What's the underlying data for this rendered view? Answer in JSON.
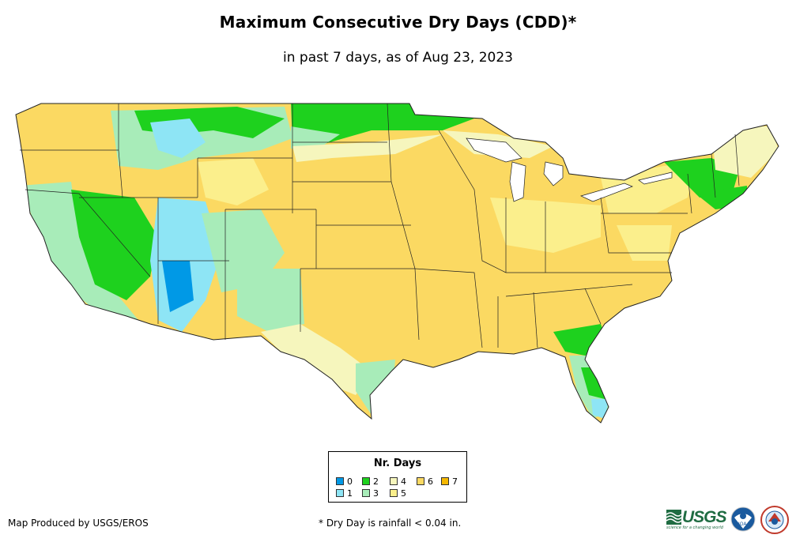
{
  "title": "Maximum Consecutive Dry Days (CDD)*",
  "subtitle": "in past 7 days, as of Aug 23, 2023",
  "legend": {
    "title": "Nr. Days",
    "items": [
      {
        "label": "0",
        "color": "#0099e6"
      },
      {
        "label": "1",
        "color": "#8ee5f5"
      },
      {
        "label": "2",
        "color": "#1ed11e"
      },
      {
        "label": "3",
        "color": "#a8ecb9"
      },
      {
        "label": "4",
        "color": "#f6f6bd"
      },
      {
        "label": "5",
        "color": "#fbef8c"
      },
      {
        "label": "6",
        "color": "#fbd962"
      },
      {
        "label": "7",
        "color": "#f5b800"
      }
    ]
  },
  "credit": "Map Produced by USGS/EROS",
  "footnote": "* Dry Day is rainfall < 0.04 in.",
  "logos": {
    "usgs_text": "USGS",
    "usgs_tagline": "science for a changing world",
    "noaa_text": "NOAA"
  }
}
